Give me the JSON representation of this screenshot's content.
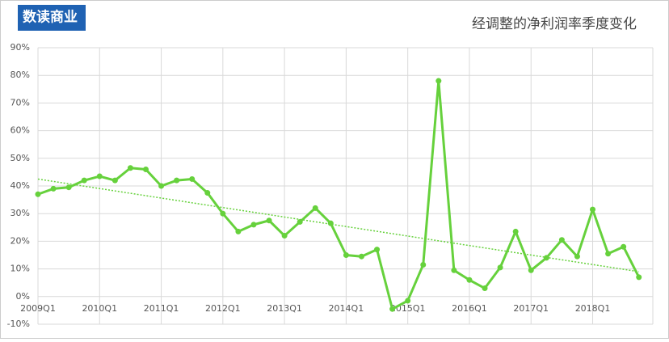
{
  "logo": "数读商业",
  "chart_data": {
    "type": "line",
    "title": "经调整的净利润率季度变化",
    "categories": [
      "2009Q1",
      null,
      null,
      null,
      "2010Q1",
      null,
      null,
      null,
      "2011Q1",
      null,
      null,
      null,
      "2012Q1",
      null,
      null,
      null,
      "2013Q1",
      null,
      null,
      null,
      "2014Q1",
      null,
      null,
      null,
      "2015Q1",
      null,
      null,
      null,
      "2016Q1",
      null,
      null,
      null,
      "2017Q1",
      null,
      null,
      null,
      "2018Q1",
      null,
      null,
      null
    ],
    "series": [
      {
        "color": "#66d13c",
        "values": [
          37,
          39,
          39.5,
          42,
          43.5,
          42,
          46.5,
          46,
          40,
          42,
          42.5,
          37.5,
          30,
          23.5,
          26,
          27.5,
          22,
          27,
          32,
          26.5,
          15,
          14.5,
          17,
          -4.5,
          -1.5,
          11.5,
          78,
          9.5,
          6,
          3,
          10.5,
          23.5,
          9.5,
          14,
          20.5,
          14.5,
          31.5,
          15.5,
          18,
          7
        ]
      }
    ],
    "trendline": {
      "color": "#66d13c",
      "values": [
        42.5,
        9
      ]
    },
    "ylim": [
      -10,
      90
    ],
    "yticks": [
      {
        "value": -10,
        "label": "-10%"
      },
      {
        "value": 0,
        "label": "0%"
      },
      {
        "value": 10,
        "label": "10%"
      },
      {
        "value": 20,
        "label": "20%"
      },
      {
        "value": 30,
        "label": "30%"
      },
      {
        "value": 40,
        "label": "40%"
      },
      {
        "value": 50,
        "label": "50%"
      },
      {
        "value": 60,
        "label": "60%"
      },
      {
        "value": 70,
        "label": "70%"
      },
      {
        "value": 80,
        "label": "80%"
      },
      {
        "value": 90,
        "label": "90%"
      }
    ],
    "grid": true
  }
}
